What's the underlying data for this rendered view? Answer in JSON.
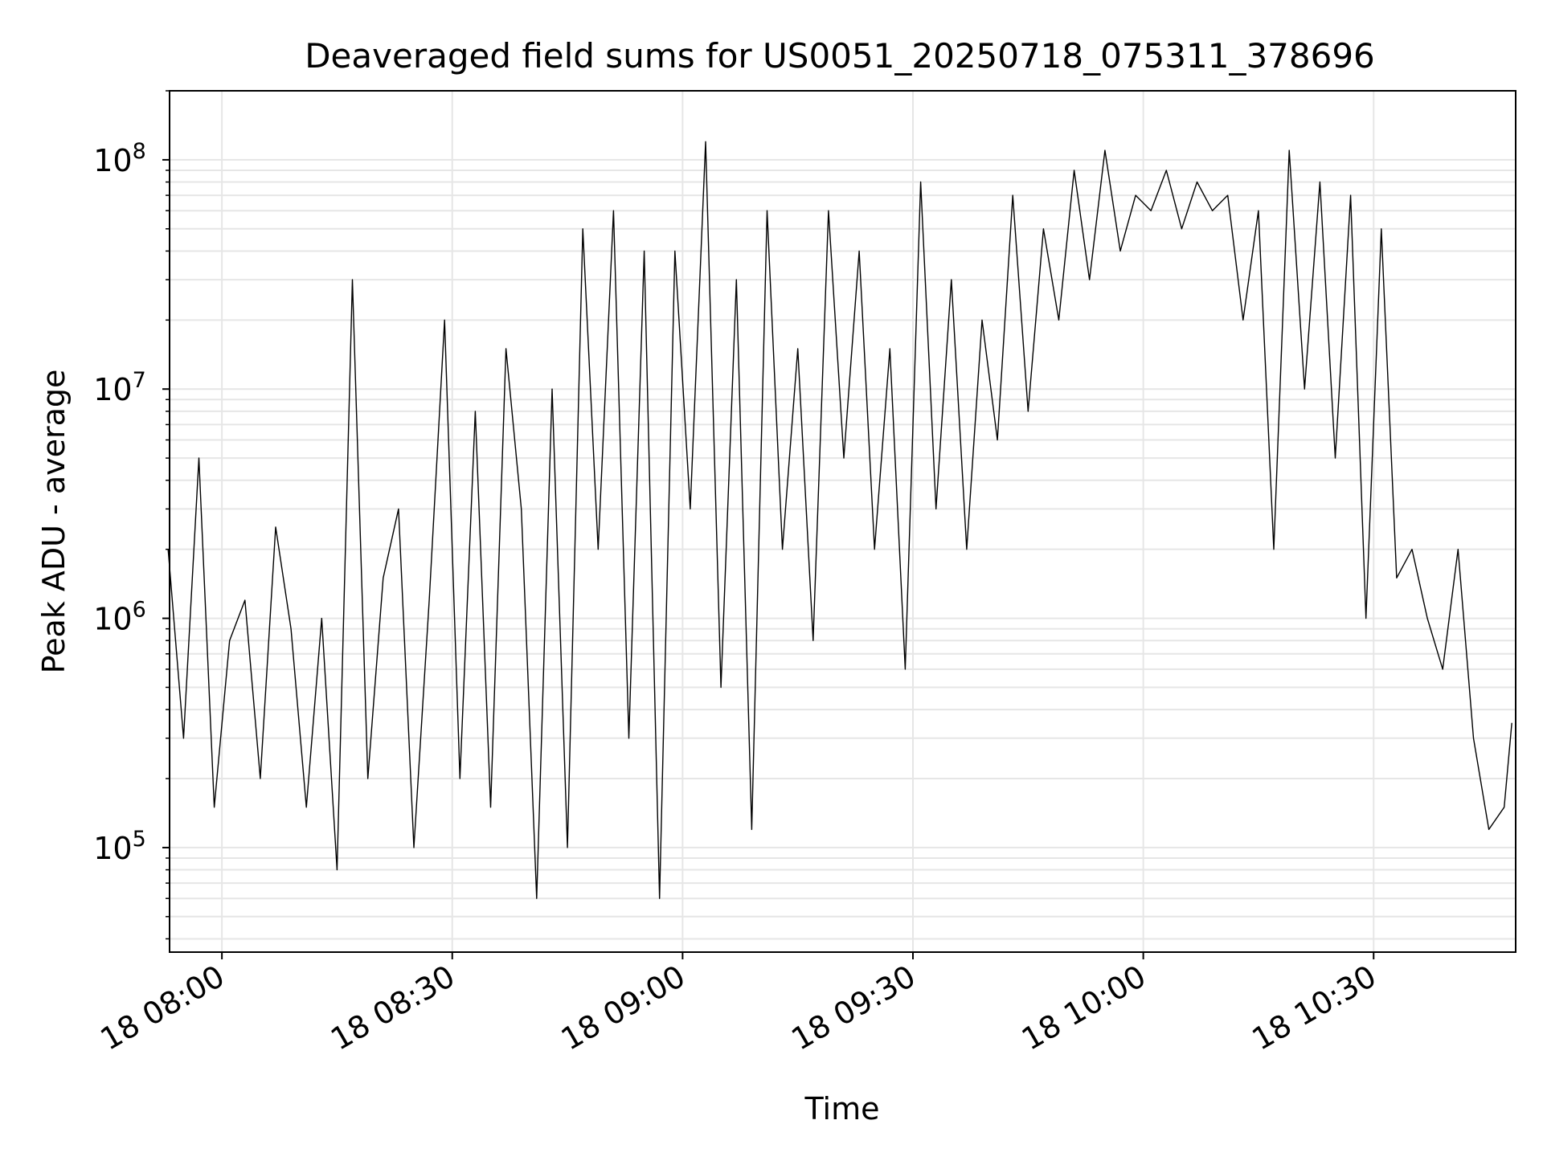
{
  "chart_data": {
    "type": "line",
    "title": "Deaveraged field sums for US0051_20250718_075311_378696",
    "xlabel": "Time",
    "ylabel": "Peak ADU - average",
    "y_scale": "log",
    "x_range": [
      "2025-07-18 07:53:11",
      "2025-07-18 10:48:30"
    ],
    "ylim": [
      35000,
      200000000
    ],
    "x_tick_labels": [
      "18 08:00",
      "18 08:30",
      "18 09:00",
      "18 09:30",
      "18 10:00",
      "18 10:30"
    ],
    "y_tick_labels": [
      {
        "base": "10",
        "exp": "5"
      },
      {
        "base": "10",
        "exp": "7"
      },
      {
        "base": "10",
        "exp": "6"
      },
      {
        "base": "10",
        "exp": "8"
      }
    ],
    "grid": true,
    "line_color": "#000000",
    "series": [
      {
        "x": [
          "07:53",
          "07:55",
          "07:57",
          "07:59",
          "08:01",
          "08:03",
          "08:05",
          "08:07",
          "08:09",
          "08:11",
          "08:13",
          "08:15",
          "08:17",
          "08:19",
          "08:21",
          "08:23",
          "08:25",
          "08:27",
          "08:29",
          "08:31",
          "08:33",
          "08:35",
          "08:37",
          "08:39",
          "08:41",
          "08:43",
          "08:45",
          "08:47",
          "08:49",
          "08:51",
          "08:53",
          "08:55",
          "08:57",
          "08:59",
          "09:01",
          "09:03",
          "09:05",
          "09:07",
          "09:09",
          "09:11",
          "09:13",
          "09:15",
          "09:17",
          "09:19",
          "09:21",
          "09:23",
          "09:25",
          "09:27",
          "09:29",
          "09:31",
          "09:33",
          "09:35",
          "09:37",
          "09:39",
          "09:41",
          "09:43",
          "09:45",
          "09:47",
          "09:49",
          "09:51",
          "09:53",
          "09:55",
          "09:57",
          "09:59",
          "10:01",
          "10:03",
          "10:05",
          "10:07",
          "10:09",
          "10:11",
          "10:13",
          "10:15",
          "10:17",
          "10:19",
          "10:21",
          "10:23",
          "10:25",
          "10:27",
          "10:29",
          "10:31",
          "10:33",
          "10:35",
          "10:37",
          "10:39",
          "10:41",
          "10:43",
          "10:45",
          "10:47",
          "10:48"
        ],
        "y": [
          2000000,
          300000,
          5000000,
          150000,
          800000,
          1200000,
          200000,
          2500000,
          900000,
          150000,
          1000000,
          80000,
          30000000,
          200000,
          1500000,
          3000000,
          100000,
          1200000,
          20000000,
          200000,
          8000000,
          150000,
          15000000,
          3000000,
          60000,
          10000000,
          100000,
          50000000,
          2000000,
          60000000,
          300000,
          40000000,
          60000,
          40000000,
          3000000,
          120000000,
          500000,
          30000000,
          120000,
          60000000,
          2000000,
          15000000,
          800000,
          60000000,
          5000000,
          40000000,
          2000000,
          15000000,
          600000,
          80000000,
          3000000,
          30000000,
          2000000,
          20000000,
          6000000,
          70000000,
          8000000,
          50000000,
          20000000,
          90000000,
          30000000,
          110000000,
          40000000,
          70000000,
          60000000,
          90000000,
          50000000,
          80000000,
          60000000,
          70000000,
          20000000,
          60000000,
          2000000,
          110000000,
          10000000,
          80000000,
          5000000,
          70000000,
          1000000,
          50000000,
          1500000,
          2000000,
          1000000,
          600000,
          2000000,
          300000,
          120000,
          150000,
          350000
        ]
      }
    ]
  }
}
